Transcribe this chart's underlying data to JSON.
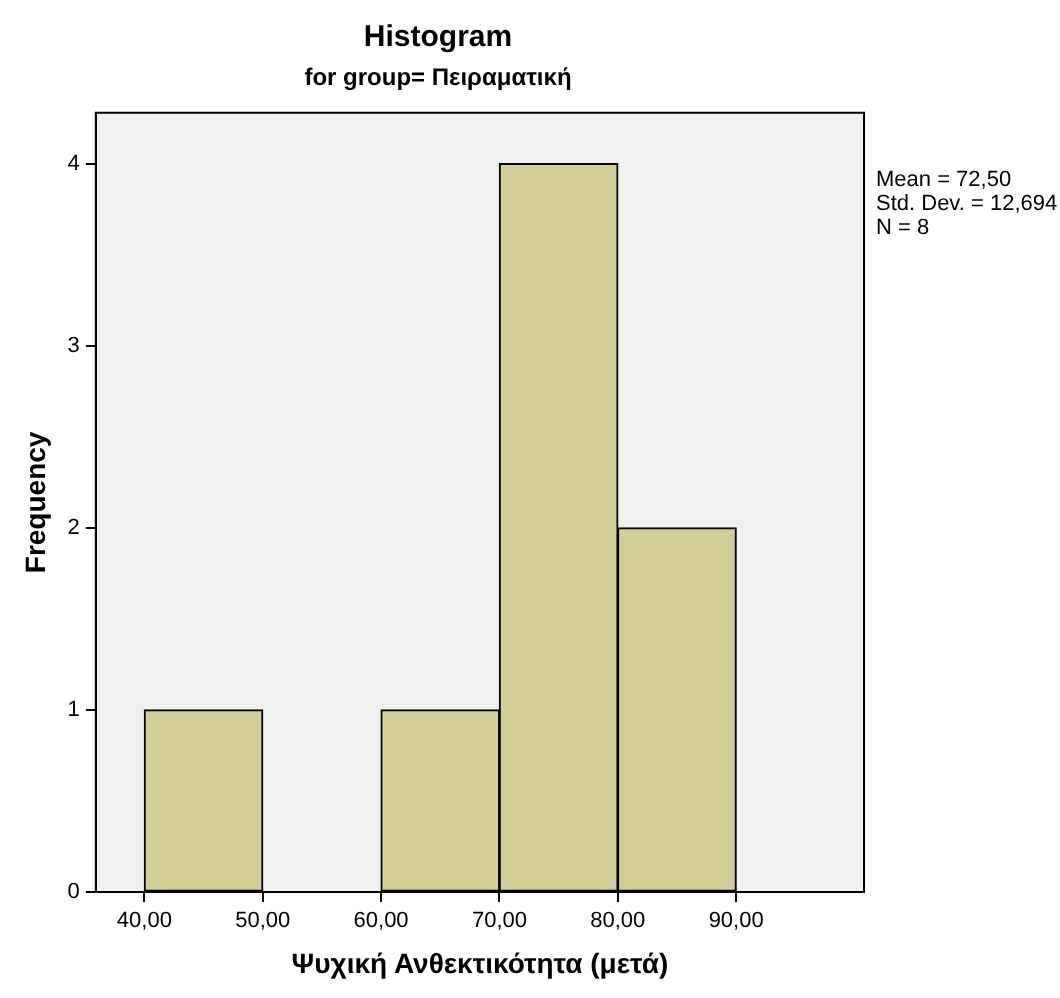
{
  "chart_data": {
    "type": "histogram",
    "title": "Histogram",
    "subtitle": "for group= Πειραματική",
    "xlabel": "Ψυχική Ανθεκτικότητα (μετά)",
    "ylabel": "Frequency",
    "bins": [
      40,
      50,
      60,
      70,
      80,
      90
    ],
    "values": [
      1,
      0,
      1,
      4,
      2
    ],
    "color": "#d3ce97",
    "xlim": [
      35.9,
      100.8
    ],
    "xticks": [
      {
        "value": 40,
        "label": "40,00"
      },
      {
        "value": 50,
        "label": "50,00"
      },
      {
        "value": 60,
        "label": "60,00"
      },
      {
        "value": 70,
        "label": "70,00"
      },
      {
        "value": 80,
        "label": "80,00"
      },
      {
        "value": 90,
        "label": "90,00"
      }
    ],
    "ylim": [
      0,
      4.28
    ],
    "yticks": [
      0,
      1,
      2,
      3,
      4
    ],
    "grid": false,
    "legend": false,
    "annotations": [
      "Mean = 72,50",
      "Std. Dev. = 12,694",
      "N = 8"
    ]
  }
}
